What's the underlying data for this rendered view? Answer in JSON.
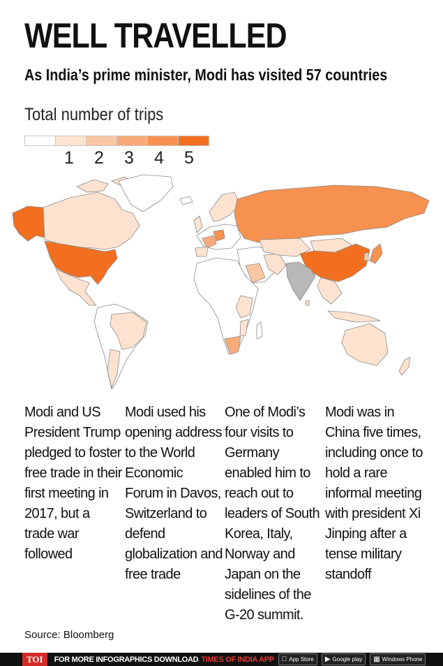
{
  "header": {
    "title": "WELL TRAVELLED",
    "subtitle": "As India’s prime minister, Modi has visited 57 countries"
  },
  "legend": {
    "title": "Total number of trips",
    "levels": [
      "1",
      "2",
      "3",
      "4",
      "5"
    ],
    "colors": [
      "#ffffff",
      "#fde3cf",
      "#fac7a2",
      "#f8ab78",
      "#f6914f",
      "#f26f1f"
    ]
  },
  "map": {
    "home_country_color": "#b8b8b8",
    "land_color": "#ffffff",
    "border_color": "#8a8a8a"
  },
  "columns": [
    {
      "text": "Modi and US President Trump pledged to foster free trade in their first meeting in 2017, but a trade war followed"
    },
    {
      "text": "Modi used his opening address to the World Economic Forum in Davos, Switzerland to defend globalization and free trade"
    },
    {
      "text": "One of Modi’s four visits to Germany enabled him to reach out to leaders of South Korea, Italy, Norway and Japan on the sidelines of the G-20 summit."
    },
    {
      "text": "Modi was in China five times, including once to hold a rare informal meeting with president Xi Jinping after a tense military standoff"
    }
  ],
  "source": "Source: Bloomberg",
  "footer": {
    "logo": "TOI",
    "text": "FOR MORE  INFOGRAPHICS DOWNLOAD",
    "app_name": "TIMES OF INDIA  APP",
    "stores": [
      {
        "icon": "apple-icon",
        "label": "App Store"
      },
      {
        "icon": "play-icon",
        "label": "Google play"
      },
      {
        "icon": "windows-icon",
        "label": "Windows Phone"
      }
    ]
  }
}
